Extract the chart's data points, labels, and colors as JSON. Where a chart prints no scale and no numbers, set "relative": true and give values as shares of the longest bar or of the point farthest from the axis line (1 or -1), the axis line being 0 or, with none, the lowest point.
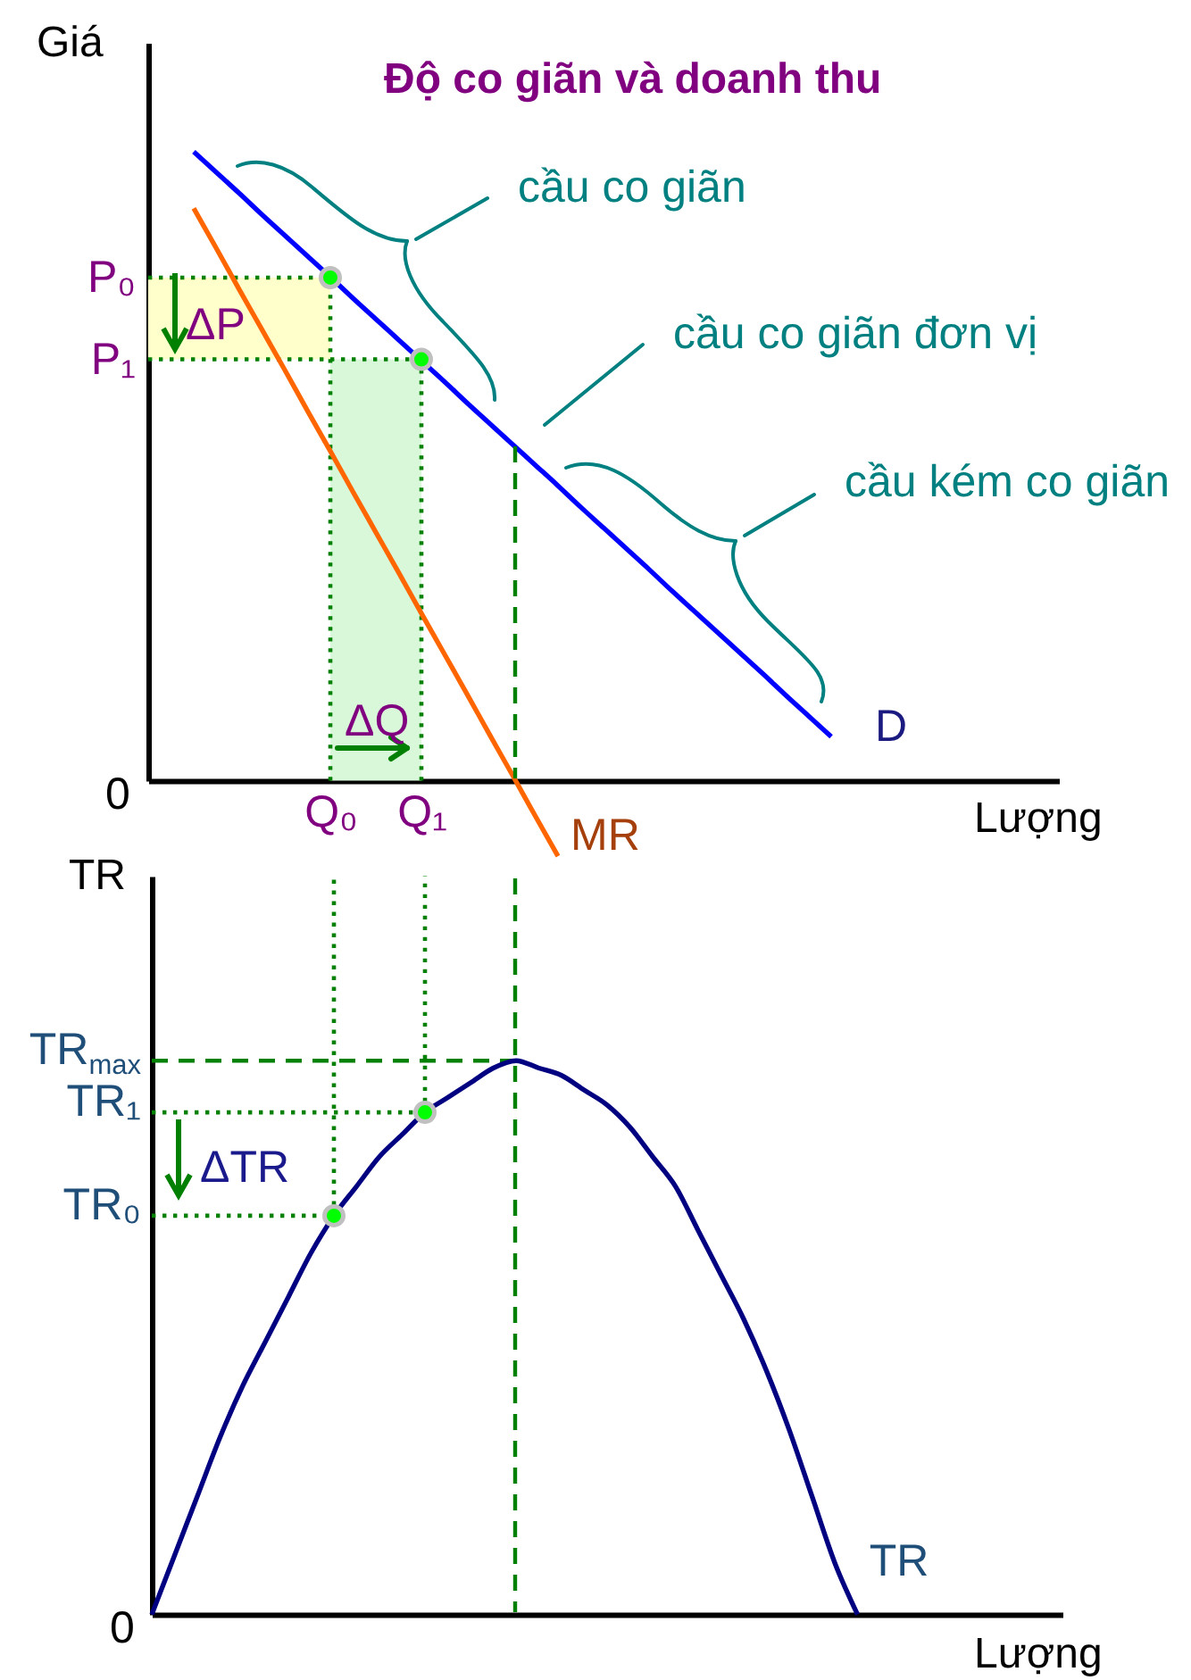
{
  "chart_data": [
    {
      "type": "line",
      "title": "Độ co giãn và doanh thu",
      "xlabel": "Lượng",
      "ylabel": "Giá",
      "relative": true,
      "tick_labels": "x",
      "categories": [
        null,
        null,
        null,
        null,
        null,
        null,
        null,
        null,
        "Q₀",
        null,
        null,
        null,
        "Q₁",
        null,
        null,
        null,
        null,
        null,
        null,
        null,
        null,
        null,
        null,
        null,
        null,
        null,
        null,
        null,
        null,
        null,
        null,
        null,
        null,
        null,
        null,
        null,
        null,
        null,
        null,
        null,
        null
      ],
      "series": [
        {
          "color": "#ffffcc",
          "values": [
            null,
            null,
            null,
            null,
            null,
            null,
            null,
            null,
            null,
            null,
            null,
            null,
            null,
            null,
            null,
            null,
            null,
            null,
            null,
            null,
            null,
            null,
            null,
            null,
            null,
            null,
            null,
            null,
            null,
            null,
            null,
            null,
            null,
            null,
            null,
            null,
            null,
            null,
            null,
            null,
            null
          ],
          "lower": [
            0.67,
            0.67,
            0.67,
            0.67,
            0.67,
            0.67,
            0.67,
            0.67,
            0.67,
            null,
            null,
            null,
            null,
            null,
            null,
            null,
            null,
            null,
            null,
            null,
            null,
            null,
            null,
            null,
            null,
            null,
            null,
            null,
            null,
            null,
            null,
            null,
            null,
            null,
            null,
            null,
            null,
            null,
            null,
            null,
            null
          ],
          "upper": [
            0.8,
            0.8,
            0.8,
            0.8,
            0.8,
            0.8,
            0.8,
            0.8,
            0.8,
            null,
            null,
            null,
            null,
            null,
            null,
            null,
            null,
            null,
            null,
            null,
            null,
            null,
            null,
            null,
            null,
            null,
            null,
            null,
            null,
            null,
            null,
            null,
            null,
            null,
            null,
            null,
            null,
            null,
            null,
            null,
            null
          ]
        },
        {
          "type": "area",
          "color": "#d9f7d9",
          "values": [
            null,
            null,
            null,
            null,
            null,
            null,
            null,
            null,
            0.67,
            0.67,
            0.67,
            0.67,
            0.67,
            null,
            null,
            null,
            null,
            null,
            null,
            null,
            null,
            null,
            null,
            null,
            null,
            null,
            null,
            null,
            null,
            null,
            null,
            null,
            null,
            null,
            null,
            null,
            null,
            null,
            null,
            null,
            null
          ]
        },
        {
          "name": "P₀",
          "color": "#008000",
          "line_style": "dotted",
          "values": [
            0.8,
            0.8,
            0.8,
            0.8,
            0.8,
            0.8,
            0.8,
            0.8,
            0.8,
            null,
            null,
            null,
            null,
            null,
            null,
            null,
            null,
            null,
            null,
            null,
            null,
            null,
            null,
            null,
            null,
            null,
            null,
            null,
            null,
            null,
            null,
            null,
            null,
            null,
            null,
            null,
            null,
            null,
            null,
            null,
            null
          ]
        },
        {
          "name": "P₁",
          "color": "#008000",
          "line_style": "dotted",
          "values": [
            0.67,
            0.67,
            0.67,
            0.67,
            0.67,
            0.67,
            0.67,
            0.67,
            0.67,
            0.67,
            0.67,
            0.67,
            0.67,
            null,
            null,
            null,
            null,
            null,
            null,
            null,
            null,
            null,
            null,
            null,
            null,
            null,
            null,
            null,
            null,
            null,
            null,
            null,
            null,
            null,
            null,
            null,
            null,
            null,
            null,
            null,
            null
          ]
        },
        {
          "color": "#008000",
          "line_style": "dotted",
          "x": [
            "Q₀",
            "Q₀"
          ],
          "values": [
            0,
            0.8
          ]
        },
        {
          "color": "#008000",
          "line_style": "dotted",
          "x": [
            "Q₁",
            "Q₁"
          ],
          "values": [
            0,
            0.67
          ]
        },
        {
          "name": "D",
          "color": "#0000ff",
          "values": [
            null,
            null,
            1,
            0.967,
            0.934,
            0.9,
            0.867,
            0.834,
            0.801,
            0.767,
            0.734,
            0.701,
            0.668,
            0.635,
            0.601,
            0.568,
            0.535,
            0.502,
            0.469,
            0.435,
            0.402,
            0.369,
            0.336,
            0.302,
            0.269,
            0.236,
            0.203,
            0.17,
            0.136,
            0.103,
            0.07,
            null,
            null,
            null,
            null,
            null,
            null,
            null,
            null,
            null,
            null
          ]
        },
        {
          "name": "MR",
          "color": "#ff6600",
          "values": [
            null,
            null,
            0.91,
            0.846,
            0.781,
            0.717,
            0.653,
            0.588,
            0.524,
            0.459,
            0.395,
            0.331,
            0.266,
            0.202,
            0.138,
            0.073,
            0.009,
            -0.056,
            -0.12,
            null,
            null,
            null,
            null,
            null,
            null,
            null,
            null,
            null,
            null,
            null,
            null,
            null,
            null,
            null,
            null,
            null,
            null,
            null,
            null,
            null,
            null
          ]
        },
        {
          "type": "scatter",
          "color": "#00ff00",
          "x": [
            "Q₀",
            "Q₁"
          ],
          "values": [
            0.8,
            0.67
          ]
        }
      ],
      "annotations": [
        "0",
        "ΔP",
        "ΔQ",
        "cầu co giãn",
        "cầu co giãn đơn vị",
        "cầu kém co giãn"
      ]
    },
    {
      "type": "line",
      "xlabel": "Lượng",
      "ylabel": "TR",
      "relative": true,
      "tick_labels": false,
      "categories": [
        null,
        null,
        null,
        null,
        null,
        null,
        null,
        null,
        "Q₀",
        null,
        null,
        null,
        "Q₁",
        null,
        null,
        null,
        null,
        null,
        null,
        null,
        null,
        null,
        null,
        null,
        null,
        null,
        null,
        null,
        null,
        null,
        null,
        null,
        null,
        null,
        null,
        null,
        null,
        null,
        null,
        null,
        null
      ],
      "series": [
        {
          "name": "TR$_{max}$",
          "color": "#008000",
          "line_style": "dashed",
          "values": [
            0.75,
            0.75,
            0.75,
            0.75,
            0.75,
            0.75,
            0.75,
            0.75,
            0.75,
            0.75,
            0.75,
            0.75,
            0.75,
            0.75,
            0.75,
            0.75,
            0.75,
            null,
            null,
            null,
            null,
            null,
            null,
            null,
            null,
            null,
            null,
            null,
            null,
            null,
            null,
            null,
            null,
            null,
            null,
            null,
            null,
            null,
            null,
            null,
            null
          ]
        },
        {
          "name": "TR₁",
          "color": "#008000",
          "line_style": "dotted",
          "values": [
            0.68,
            0.68,
            0.68,
            0.68,
            0.68,
            0.68,
            0.68,
            0.68,
            0.68,
            0.68,
            0.68,
            0.68,
            0.68,
            null,
            null,
            null,
            null,
            null,
            null,
            null,
            null,
            null,
            null,
            null,
            null,
            null,
            null,
            null,
            null,
            null,
            null,
            null,
            null,
            null,
            null,
            null,
            null,
            null,
            null,
            null,
            null
          ]
        },
        {
          "name": "TR₀",
          "color": "#008000",
          "line_style": "dotted",
          "values": [
            0.54,
            0.54,
            0.54,
            0.54,
            0.54,
            0.54,
            0.54,
            0.54,
            0.54,
            null,
            null,
            null,
            null,
            null,
            null,
            null,
            null,
            null,
            null,
            null,
            null,
            null,
            null,
            null,
            null,
            null,
            null,
            null,
            null,
            null,
            null,
            null,
            null,
            null,
            null,
            null,
            null,
            null,
            null,
            null,
            null
          ]
        },
        {
          "color": "#008000",
          "line_style": "dotted",
          "x": [
            "Q₀",
            "Q₀"
          ],
          "values": [
            0.54,
            1
          ]
        },
        {
          "color": "#008000",
          "line_style": "dotted",
          "x": [
            "Q₁",
            "Q₁"
          ],
          "values": [
            0.68,
            1
          ]
        },
        {
          "name": "TR",
          "color": "#000080",
          "values": [
            0,
            0.08,
            0.16,
            0.24,
            0.31,
            0.37,
            0.43,
            0.49,
            0.54,
            0.58,
            0.62,
            0.65,
            0.68,
            0.7,
            0.72,
            0.74,
            0.75,
            0.74,
            0.73,
            0.71,
            0.69,
            0.66,
            0.62,
            0.58,
            0.52,
            0.46,
            0.4,
            0.33,
            0.25,
            0.16,
            0.07,
            0,
            null,
            null,
            null,
            null,
            null,
            null,
            null,
            null,
            null
          ]
        },
        {
          "type": "scatter",
          "color": "#00ff00",
          "x": [
            "Q₀",
            "Q₁"
          ],
          "values": [
            0.54,
            0.68
          ]
        }
      ],
      "annotations": [
        "0",
        "ΔTR"
      ]
    }
  ]
}
